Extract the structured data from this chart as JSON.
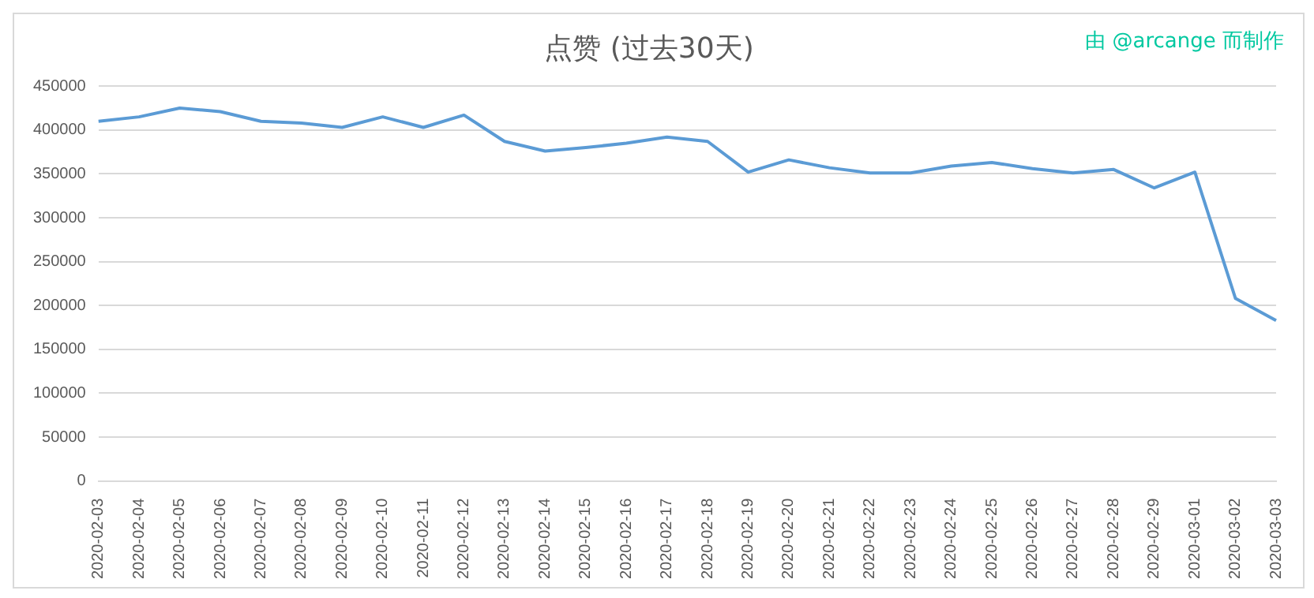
{
  "chart_data": {
    "type": "line",
    "title": "点赞 (过去30天)",
    "annotations": [
      "由 @arcange 而制作"
    ],
    "categories": [
      "2020-02-03",
      "2020-02-04",
      "2020-02-05",
      "2020-02-06",
      "2020-02-07",
      "2020-02-08",
      "2020-02-09",
      "2020-02-10",
      "2020-02-11",
      "2020-02-12",
      "2020-02-13",
      "2020-02-14",
      "2020-02-15",
      "2020-02-16",
      "2020-02-17",
      "2020-02-18",
      "2020-02-19",
      "2020-02-20",
      "2020-02-21",
      "2020-02-22",
      "2020-02-23",
      "2020-02-24",
      "2020-02-25",
      "2020-02-26",
      "2020-02-27",
      "2020-02-28",
      "2020-02-29",
      "2020-03-01",
      "2020-03-02",
      "2020-03-03"
    ],
    "series": [
      {
        "color": "#5b9bd5",
        "values": [
          410000,
          415000,
          425000,
          421000,
          410000,
          408000,
          403000,
          415000,
          403000,
          417000,
          387000,
          376000,
          380000,
          385000,
          392000,
          387000,
          352000,
          366000,
          357000,
          351000,
          351000,
          359000,
          363000,
          356000,
          351000,
          355000,
          334000,
          352000,
          208000,
          183000
        ]
      }
    ],
    "ylim": [
      0,
      450000
    ],
    "yticks": [
      0,
      50000,
      100000,
      150000,
      200000,
      250000,
      300000,
      350000,
      400000,
      450000
    ],
    "grid": "y",
    "legend": false,
    "marker": "none",
    "line_style": "solid"
  }
}
